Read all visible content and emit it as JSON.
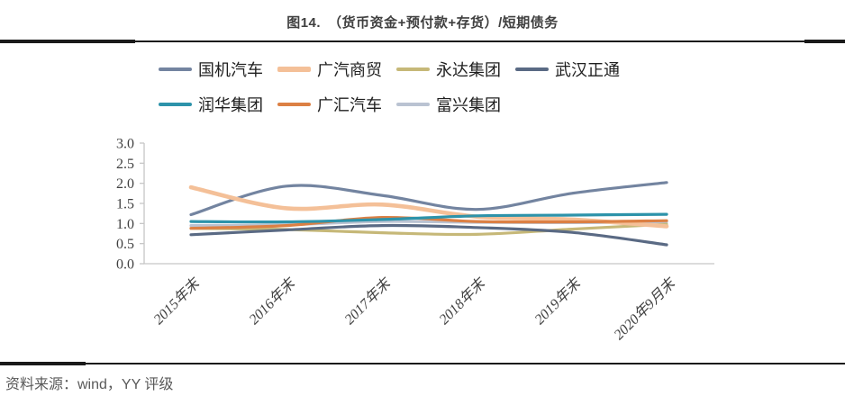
{
  "title": "图14.　（货币资金+预付款+存货）/短期债务",
  "footer": "资料来源：wind，YY 评级",
  "legend": {
    "rows": [
      [
        "国机汽车",
        "广汽商贸",
        "永达集团",
        "武汉正通"
      ],
      [
        "润华集团",
        "广汇汽车",
        "富兴集团"
      ]
    ]
  },
  "chart_data": {
    "type": "line",
    "smooth": true,
    "grid": false,
    "legend_position": "top",
    "title": "图14.　（货币资金+预付款+存货）/短期债务",
    "xlabel": "",
    "ylabel": "",
    "categories": [
      "2015年末",
      "2016年末",
      "2017年末",
      "2018年末",
      "2019年末",
      "2020年9月末"
    ],
    "ylim": [
      0.0,
      3.0
    ],
    "ytick_step": 0.5,
    "yticks": [
      "0.0",
      "0.5",
      "1.0",
      "1.5",
      "2.0",
      "2.5",
      "3.0"
    ],
    "series": [
      {
        "name": "国机汽车",
        "color": "#7384a0",
        "width": 3.2,
        "values": [
          1.22,
          1.93,
          1.7,
          1.35,
          1.75,
          2.02
        ]
      },
      {
        "name": "广汽商贸",
        "color": "#f4c098",
        "width": 4.6,
        "values": [
          1.9,
          1.38,
          1.47,
          1.17,
          1.1,
          0.93
        ]
      },
      {
        "name": "永达集团",
        "color": "#c6b878",
        "width": 3.2,
        "values": [
          0.88,
          0.85,
          0.77,
          0.73,
          0.86,
          0.98
        ]
      },
      {
        "name": "武汉正通",
        "color": "#5a6a84",
        "width": 3.2,
        "values": [
          0.72,
          0.84,
          0.95,
          0.9,
          0.78,
          0.47
        ]
      },
      {
        "name": "润华集团",
        "color": "#2d93aa",
        "width": 3.2,
        "values": [
          1.05,
          1.04,
          1.1,
          1.19,
          1.21,
          1.23
        ]
      },
      {
        "name": "广汇汽车",
        "color": "#dc8044",
        "width": 3.2,
        "values": [
          0.88,
          0.95,
          1.15,
          1.05,
          1.04,
          1.07
        ]
      },
      {
        "name": "富兴集团",
        "color": "#bac3d2",
        "width": 3.2,
        "values": [
          0.95,
          0.97,
          1.05,
          1.03,
          1.02,
          1.04
        ]
      }
    ]
  }
}
